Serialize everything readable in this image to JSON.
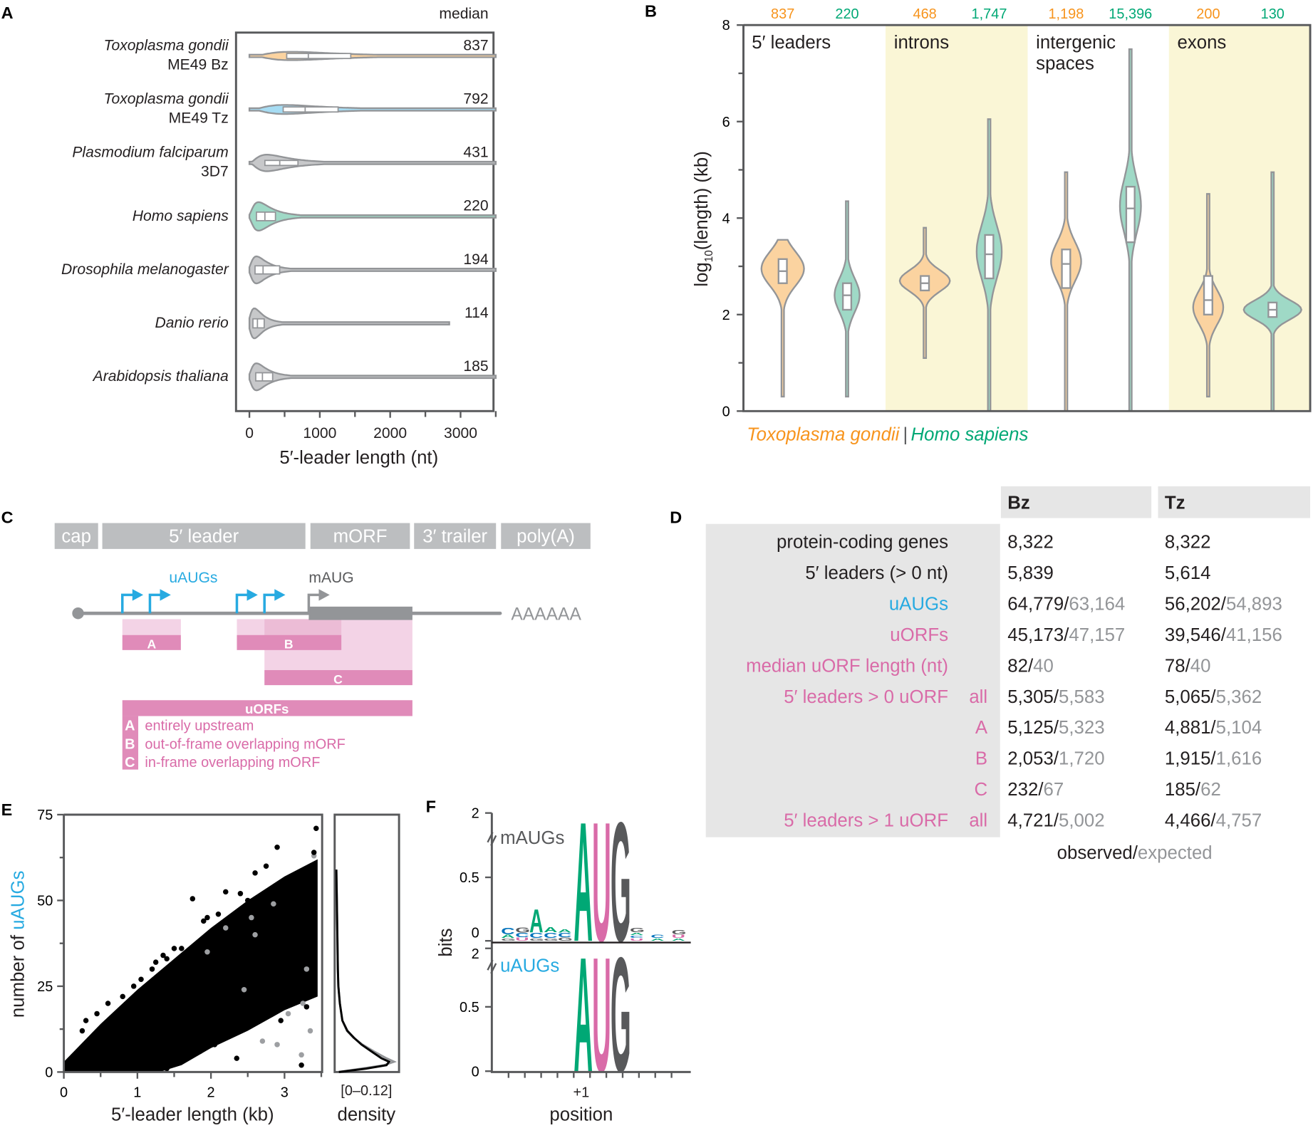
{
  "panel_labels": {
    "a": "A",
    "b": "B",
    "c": "C",
    "d": "D",
    "e": "E",
    "f": "F"
  },
  "colors": {
    "toxo": "#f7941d",
    "toxo_fill": "#fbd3a0",
    "human": "#00a875",
    "human_fill": "#9fd9c6",
    "tz": "#27aae1",
    "tz_fill": "#a6dcf3",
    "gray": "#939598",
    "gray_fill": "#c7c8ca",
    "pink": "#d96ba8",
    "uorf_dark": "#e08bb9",
    "uorf_light": "#f3d3e6",
    "uorf_mid": "#ecbcd6",
    "yellow": "#faf6d6",
    "table_gray": "#e6e6e6"
  },
  "chart_data": [
    {
      "type": "violin",
      "panel": "A",
      "xlabel": "5′-leader length (nt)",
      "xlim": [
        0,
        3500
      ],
      "xticks": [
        "0",
        "1000",
        "2000",
        "3000"
      ],
      "median_header": "median",
      "species": [
        {
          "name": "Toxoplasma gondii",
          "strain": "ME49 Bz",
          "strain_color": "toxo",
          "fill": "toxo_fill",
          "median": 837,
          "median_label": "837",
          "q1": 530,
          "q3": 1440,
          "mode": 600,
          "peak": 0.28,
          "max": 3500
        },
        {
          "name": "Toxoplasma gondii",
          "strain": "ME49 Tz",
          "strain_color": "tz",
          "fill": "tz_fill",
          "median": 792,
          "median_label": "792",
          "q1": 480,
          "q3": 1260,
          "mode": 500,
          "peak": 0.3,
          "max": 3500
        },
        {
          "name": "Plasmodium falciparum",
          "strain": "3D7",
          "strain_color": "dark",
          "fill": "gray_fill",
          "median": 431,
          "median_label": "431",
          "q1": 220,
          "q3": 690,
          "mode": 250,
          "peak": 0.55,
          "max": 3500
        },
        {
          "name": "Homo sapiens",
          "strain": "",
          "strain_color": "human",
          "fill": "human_fill",
          "median": 220,
          "median_label": "220",
          "q1": 100,
          "q3": 370,
          "mode": 130,
          "peak": 0.95,
          "max": 3500
        },
        {
          "name": "Drosophila melanogaster",
          "strain": "",
          "strain_color": "dark",
          "fill": "gray_fill",
          "median": 194,
          "median_label": "194",
          "q1": 80,
          "q3": 430,
          "mode": 100,
          "peak": 0.9,
          "max": 3500
        },
        {
          "name": "Danio rerio",
          "strain": "",
          "strain_color": "dark",
          "fill": "gray_fill",
          "median": 114,
          "median_label": "114",
          "q1": 50,
          "q3": 210,
          "mode": 70,
          "peak": 1.0,
          "max": 2850
        },
        {
          "name": "Arabidopsis thaliana",
          "strain": "",
          "strain_color": "dark",
          "fill": "gray_fill",
          "median": 185,
          "median_label": "185",
          "q1": 90,
          "q3": 330,
          "mode": 100,
          "peak": 0.9,
          "max": 3500
        }
      ]
    },
    {
      "type": "violin",
      "panel": "B",
      "ylabel_main": "log",
      "ylabel_sub": "10",
      "ylabel_rest": "(length) (kb)",
      "ylim": [
        0,
        8
      ],
      "yticks": [
        "0",
        "2",
        "4",
        "6",
        "8"
      ],
      "legend": {
        "toxo": "Toxoplasma gondii",
        "sep": "|",
        "human": "Homo sapiens"
      },
      "categories": [
        {
          "label": "5′ leaders",
          "label2": "",
          "shaded": false
        },
        {
          "label": "introns",
          "label2": "",
          "shaded": true
        },
        {
          "label": "intergenic",
          "label2": "spaces",
          "shaded": false
        },
        {
          "label": "exons",
          "label2": "",
          "shaded": true
        }
      ],
      "series": [
        {
          "cat": 0,
          "org": "toxo",
          "median_label": "837",
          "min": 0.3,
          "max": 3.55,
          "q1": 2.65,
          "median": 2.9,
          "q3": 3.15,
          "mode": 2.95,
          "sd": 0.35,
          "peak": 0.85
        },
        {
          "cat": 0,
          "org": "human",
          "median_label": "220",
          "min": 0.3,
          "max": 4.35,
          "q1": 2.1,
          "median": 2.4,
          "q3": 2.65,
          "mode": 2.4,
          "sd": 0.35,
          "peak": 0.5
        },
        {
          "cat": 1,
          "org": "toxo",
          "median_label": "468",
          "min": 1.1,
          "max": 3.8,
          "q1": 2.5,
          "median": 2.65,
          "q3": 2.8,
          "mode": 2.7,
          "sd": 0.22,
          "peak": 1.0
        },
        {
          "cat": 1,
          "org": "human",
          "median_label": "1,747",
          "min": 0,
          "max": 6.05,
          "q1": 2.75,
          "median": 3.25,
          "q3": 3.65,
          "mode": 3.3,
          "sd": 0.55,
          "peak": 0.5
        },
        {
          "cat": 2,
          "org": "toxo",
          "median_label": "1,198",
          "min": 0,
          "max": 4.95,
          "q1": 2.55,
          "median": 3.05,
          "q3": 3.35,
          "mode": 3.1,
          "sd": 0.4,
          "peak": 0.6
        },
        {
          "cat": 2,
          "org": "human",
          "median_label": "15,396",
          "min": 0,
          "max": 7.5,
          "q1": 3.5,
          "median": 4.2,
          "q3": 4.65,
          "mode": 4.25,
          "sd": 0.55,
          "peak": 0.42
        },
        {
          "cat": 3,
          "org": "toxo",
          "median_label": "200",
          "min": 0.3,
          "max": 4.5,
          "q1": 2.0,
          "median": 2.3,
          "q3": 2.8,
          "mode": 2.15,
          "sd": 0.35,
          "peak": 0.6
        },
        {
          "cat": 3,
          "org": "human",
          "median_label": "130",
          "min": 0,
          "max": 4.95,
          "q1": 1.95,
          "median": 2.1,
          "q3": 2.25,
          "mode": 2.1,
          "sd": 0.2,
          "peak": 1.15
        }
      ]
    },
    {
      "type": "scatter",
      "panel": "E",
      "xlabel": "5′-leader length (kb)",
      "ylabel_prefix": "number of ",
      "ylabel_highlight": "uAUGs",
      "xlim": [
        0,
        3.5
      ],
      "ylim": [
        0,
        75
      ],
      "xticks": [
        "0",
        "1",
        "2",
        "3"
      ],
      "yticks": [
        "0",
        "25",
        "50",
        "75"
      ],
      "dense_region_upper": [
        [
          0,
          3
        ],
        [
          0.5,
          14
        ],
        [
          1,
          24
        ],
        [
          1.5,
          33
        ],
        [
          2,
          42
        ],
        [
          2.5,
          50
        ],
        [
          3,
          57
        ],
        [
          3.45,
          62
        ]
      ],
      "dense_region_lower": [
        [
          3.45,
          22
        ],
        [
          3,
          18
        ],
        [
          2.5,
          12
        ],
        [
          2,
          7
        ],
        [
          1.6,
          2
        ],
        [
          1.3,
          0
        ],
        [
          0,
          0
        ]
      ],
      "points_black": [
        [
          3.43,
          71
        ],
        [
          2.9,
          65.5
        ],
        [
          3.4,
          64
        ],
        [
          2.75,
          60
        ],
        [
          2.6,
          58
        ],
        [
          1.75,
          50.5
        ],
        [
          2.2,
          52.5
        ],
        [
          2.4,
          52
        ],
        [
          2.5,
          50
        ],
        [
          2.65,
          48
        ],
        [
          1.9,
          44
        ],
        [
          1.95,
          45
        ],
        [
          2.1,
          46
        ],
        [
          1.6,
          36
        ],
        [
          1.5,
          36
        ],
        [
          1.4,
          33
        ],
        [
          1.35,
          34
        ],
        [
          1.25,
          32
        ],
        [
          1.2,
          30
        ],
        [
          1.05,
          27
        ],
        [
          0.95,
          25
        ],
        [
          0.8,
          22
        ],
        [
          0.6,
          20
        ],
        [
          0.45,
          17
        ],
        [
          0.3,
          15
        ],
        [
          0.25,
          12
        ],
        [
          3.3,
          19
        ],
        [
          3.37,
          24
        ],
        [
          3.3,
          38
        ],
        [
          3.2,
          45
        ],
        [
          3.05,
          46
        ],
        [
          2.85,
          35
        ],
        [
          2.75,
          30
        ],
        [
          2.55,
          21
        ],
        [
          2.4,
          14
        ],
        [
          2.25,
          11
        ],
        [
          2.05,
          8
        ],
        [
          1.85,
          6
        ],
        [
          1.6,
          3
        ],
        [
          1.4,
          1
        ],
        [
          3.23,
          2
        ],
        [
          2.35,
          4
        ],
        [
          2.95,
          15
        ],
        [
          3.1,
          27
        ],
        [
          2.5,
          33
        ],
        [
          2.3,
          38
        ],
        [
          2.0,
          29
        ],
        [
          1.75,
          24
        ],
        [
          1.5,
          18
        ],
        [
          1.2,
          10
        ]
      ],
      "points_gray": [
        [
          3.23,
          5
        ],
        [
          3.25,
          20
        ],
        [
          3.3,
          30
        ],
        [
          3.4,
          63
        ],
        [
          2.85,
          49
        ],
        [
          2.6,
          40
        ],
        [
          2.45,
          24
        ],
        [
          2.7,
          9
        ],
        [
          3.05,
          17
        ],
        [
          2.2,
          42
        ],
        [
          1.95,
          35
        ],
        [
          2.55,
          45
        ],
        [
          3.35,
          12
        ],
        [
          2.9,
          8
        ]
      ]
    },
    {
      "type": "line",
      "panel": "E-density",
      "xlabel": "density",
      "range_label": "[0–0.12]",
      "xlim": [
        0,
        0.12
      ],
      "ylim": [
        0,
        75
      ],
      "y": [
        0,
        1,
        2,
        3,
        4,
        6,
        8,
        10,
        12,
        15,
        20,
        25,
        30,
        40,
        50,
        59
      ],
      "series": [
        {
          "name": "observed",
          "color": "#000000",
          "values": [
            0.005,
            0.06,
            0.1,
            0.105,
            0.09,
            0.07,
            0.05,
            0.035,
            0.022,
            0.012,
            0.007,
            0.004,
            0.003,
            0.002,
            0.001,
            0
          ]
        },
        {
          "name": "expected",
          "color": "#939598",
          "values": [
            0.005,
            0.05,
            0.095,
            0.115,
            0.1,
            0.075,
            0.052,
            0.034,
            0.021,
            0.012,
            0.007,
            0.004,
            0.003,
            0.002,
            0.001,
            0
          ]
        }
      ]
    },
    {
      "type": "sequence-logo",
      "panel": "F",
      "ylabel": "bits",
      "xlabel": "position",
      "xtick_label": "+1",
      "yticks_top": [
        "0",
        "0.5",
        "2"
      ],
      "yticks_bottom": [
        "0",
        "0.5",
        "2"
      ],
      "logos": [
        {
          "name": "mAUGs",
          "color": "#58595b",
          "core": [
            {
              "letter": "A",
              "bits": 2
            },
            {
              "letter": "U",
              "bits": 2
            },
            {
              "letter": "G",
              "bits": 2
            }
          ],
          "flank": [
            {
              "pos": -5,
              "stack": [
                [
                  "G",
                  0.02
                ],
                [
                  "A",
                  0.03
                ],
                [
                  "C",
                  0.06
                ]
              ]
            },
            {
              "pos": -4,
              "stack": [
                [
                  "U",
                  0.03
                ],
                [
                  "C",
                  0.04
                ],
                [
                  "G",
                  0.05
                ]
              ]
            },
            {
              "pos": -3,
              "stack": [
                [
                  "G",
                  0.02
                ],
                [
                  "C",
                  0.05
                ],
                [
                  "A",
                  0.22
                ]
              ]
            },
            {
              "pos": -2,
              "stack": [
                [
                  "G",
                  0.02
                ],
                [
                  "C",
                  0.05
                ],
                [
                  "A",
                  0.05
                ]
              ]
            },
            {
              "pos": -1,
              "stack": [
                [
                  "G",
                  0.03
                ],
                [
                  "C",
                  0.04
                ],
                [
                  "A",
                  0.03
                ]
              ]
            },
            {
              "pos": 4,
              "stack": [
                [
                  "U",
                  0.02
                ],
                [
                  "C",
                  0.02
                ],
                [
                  "A",
                  0.02
                ],
                [
                  "G",
                  0.04
                ]
              ]
            },
            {
              "pos": 5,
              "stack": [
                [
                  "A",
                  0.02
                ],
                [
                  "C",
                  0.03
                ]
              ]
            },
            {
              "pos": 6,
              "stack": [
                [
                  "A",
                  0.02
                ],
                [
                  "U",
                  0.03
                ],
                [
                  "G",
                  0.04
                ]
              ]
            }
          ]
        },
        {
          "name": "uAUGs",
          "color": "#27aae1",
          "core": [
            {
              "letter": "A",
              "bits": 2
            },
            {
              "letter": "U",
              "bits": 2
            },
            {
              "letter": "G",
              "bits": 2
            }
          ],
          "flank": []
        }
      ]
    }
  ],
  "panel_c": {
    "segments": [
      "cap",
      "5′ leader",
      "mORF",
      "3′ trailer",
      "poly(A)"
    ],
    "uaugs_label": "uAUGs",
    "maug_label": "mAUG",
    "polya_label": "AAAAAA",
    "uorf_boxes": [
      "A",
      "B",
      "C"
    ],
    "legend_title": "uORFs",
    "legend_items": [
      {
        "key": "A",
        "text": "entirely upstream"
      },
      {
        "key": "B",
        "text": "out-of-frame overlapping mORF"
      },
      {
        "key": "C",
        "text": "in-frame overlapping mORF"
      }
    ]
  },
  "panel_d": {
    "columns": [
      "Bz",
      "Tz"
    ],
    "rows": [
      {
        "label": "protein-coding genes",
        "sub": "",
        "color": "dark",
        "bz_obs": "8,322",
        "bz_exp": "",
        "tz_obs": "8,322",
        "tz_exp": ""
      },
      {
        "label": "5′ leaders (> 0 nt)",
        "sub": "",
        "color": "dark",
        "bz_obs": "5,839",
        "bz_exp": "",
        "tz_obs": "5,614",
        "tz_exp": ""
      },
      {
        "label": "uAUGs",
        "sub": "",
        "color": "blue",
        "bz_obs": "64,779/",
        "bz_exp": "63,164",
        "tz_obs": "56,202/",
        "tz_exp": "54,893"
      },
      {
        "label": "uORFs",
        "sub": "",
        "color": "pink",
        "bz_obs": "45,173/",
        "bz_exp": "47,157",
        "tz_obs": "39,546/",
        "tz_exp": "41,156"
      },
      {
        "label": "median uORF length (nt)",
        "sub": "",
        "color": "pink",
        "bz_obs": "82/",
        "bz_exp": "40",
        "tz_obs": "78/",
        "tz_exp": "40"
      },
      {
        "label": "5′ leaders > 0 uORF",
        "sub": "all",
        "color": "pink",
        "bz_obs": "5,305/",
        "bz_exp": "5,583",
        "tz_obs": "5,065/",
        "tz_exp": "5,362"
      },
      {
        "label": "",
        "sub": "A",
        "color": "pink",
        "bz_obs": "5,125/",
        "bz_exp": "5,323",
        "tz_obs": "4,881/",
        "tz_exp": "5,104"
      },
      {
        "label": "",
        "sub": "B",
        "color": "pink",
        "bz_obs": "2,053/",
        "bz_exp": "1,720",
        "tz_obs": "1,915/",
        "tz_exp": "1,616"
      },
      {
        "label": "",
        "sub": "C",
        "color": "pink",
        "bz_obs": "232/",
        "bz_exp": "67",
        "tz_obs": "185/",
        "tz_exp": "62"
      },
      {
        "label": "5′ leaders > 1 uORF",
        "sub": "all",
        "color": "pink",
        "bz_obs": "4,721/",
        "bz_exp": "5,002",
        "tz_obs": "4,466/",
        "tz_exp": "4,757"
      }
    ],
    "footer_observed": "observed/",
    "footer_expected": "expected"
  }
}
